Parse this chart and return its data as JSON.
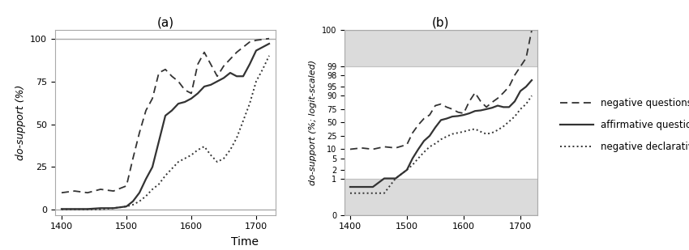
{
  "time_points": [
    1400,
    1420,
    1440,
    1460,
    1480,
    1500,
    1510,
    1520,
    1530,
    1540,
    1550,
    1560,
    1570,
    1580,
    1590,
    1600,
    1610,
    1620,
    1630,
    1640,
    1650,
    1660,
    1670,
    1680,
    1690,
    1700,
    1710,
    1720
  ],
  "neg_questions": [
    10,
    11,
    10,
    12,
    11,
    14,
    30,
    45,
    58,
    65,
    80,
    82,
    78,
    75,
    70,
    68,
    85,
    92,
    85,
    78,
    84,
    88,
    92,
    95,
    98,
    99,
    99.5,
    100
  ],
  "aff_questions": [
    0.5,
    0.5,
    0.5,
    1,
    1,
    2,
    5,
    10,
    18,
    25,
    40,
    55,
    58,
    62,
    63,
    65,
    68,
    72,
    73,
    75,
    77,
    80,
    78,
    78,
    85,
    93,
    95,
    97
  ],
  "neg_declaratives": [
    0.3,
    0.3,
    0.3,
    0.3,
    1,
    2,
    3,
    5,
    8,
    12,
    15,
    20,
    24,
    28,
    30,
    32,
    35,
    37,
    32,
    28,
    30,
    35,
    42,
    52,
    62,
    75,
    82,
    90
  ],
  "xlabel": "Time",
  "ylabel_a": "do-support (%)",
  "ylabel_b": "do-support (%; logit-scaled)",
  "title_a": "(a)",
  "title_b": "(b)",
  "legend_labels": [
    "negative questions",
    "affirmative questions",
    "negative declaratives"
  ],
  "yticks_b_pct": [
    0,
    1,
    2,
    5,
    10,
    25,
    50,
    75,
    90,
    95,
    98,
    99,
    100
  ],
  "gray_band_color": "#cccccc",
  "line_color": "#333333",
  "xmin": 1390,
  "xmax": 1730
}
